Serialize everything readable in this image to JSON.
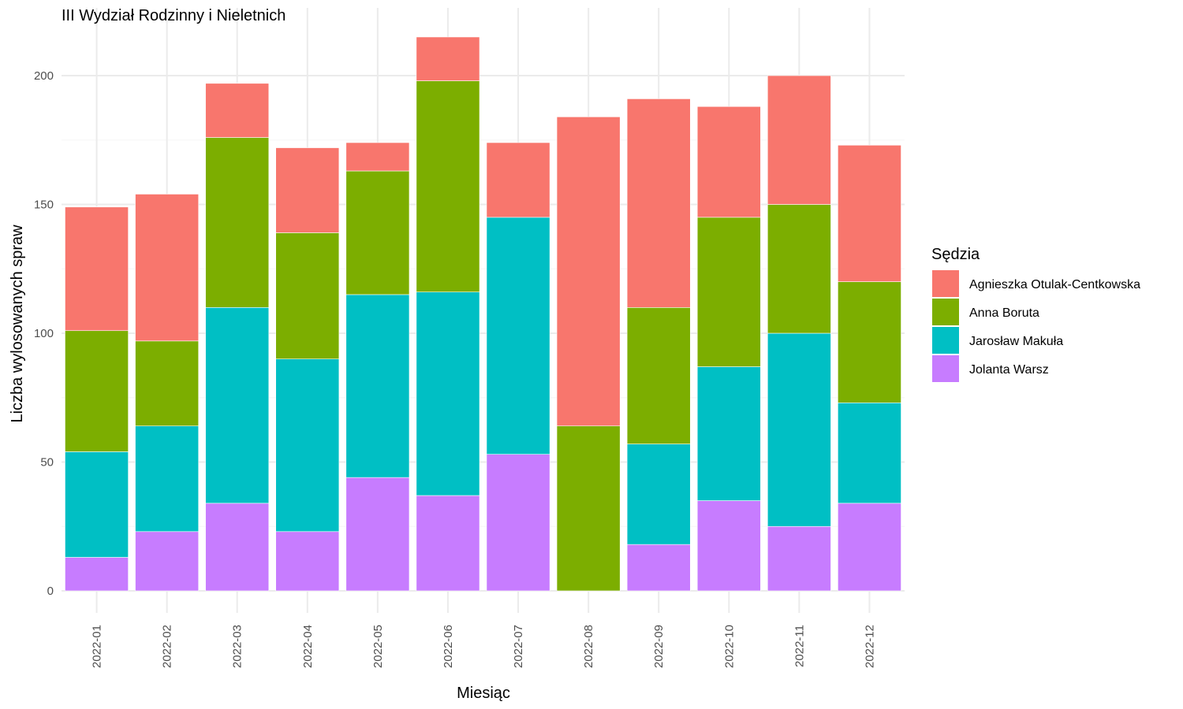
{
  "chart_data": {
    "type": "bar",
    "stacked": true,
    "title": "III Wydział Rodzinny i Nieletnich",
    "xlabel": "Miesiąc",
    "ylabel": "Liczba wylosowanych spraw",
    "ylim": [
      0,
      215
    ],
    "yticks": [
      0,
      50,
      100,
      150,
      200
    ],
    "grid": true,
    "legend_title": "Sędzia",
    "legend_position": "right",
    "categories": [
      "2022-01",
      "2022-02",
      "2022-03",
      "2022-04",
      "2022-05",
      "2022-06",
      "2022-07",
      "2022-08",
      "2022-09",
      "2022-10",
      "2022-11",
      "2022-12"
    ],
    "series": [
      {
        "name": "Jolanta Warsz",
        "color": "#C77CFF",
        "values": [
          13,
          23,
          34,
          23,
          44,
          37,
          53,
          0,
          18,
          35,
          25,
          34
        ]
      },
      {
        "name": "Jarosław Makuła",
        "color": "#00BFC4",
        "values": [
          41,
          41,
          76,
          67,
          71,
          79,
          92,
          0,
          39,
          52,
          75,
          39
        ]
      },
      {
        "name": "Anna Boruta",
        "color": "#7CAE00",
        "values": [
          47,
          33,
          66,
          49,
          48,
          82,
          0,
          64,
          53,
          58,
          50,
          47
        ]
      },
      {
        "name": "Agnieszka Otulak-Centkowska",
        "color": "#F8766D",
        "values": [
          48,
          57,
          21,
          33,
          11,
          17,
          29,
          120,
          81,
          43,
          50,
          53
        ]
      }
    ],
    "legend_order": [
      "Agnieszka Otulak-Centkowska",
      "Anna Boruta",
      "Jarosław Makuła",
      "Jolanta Warsz"
    ]
  }
}
